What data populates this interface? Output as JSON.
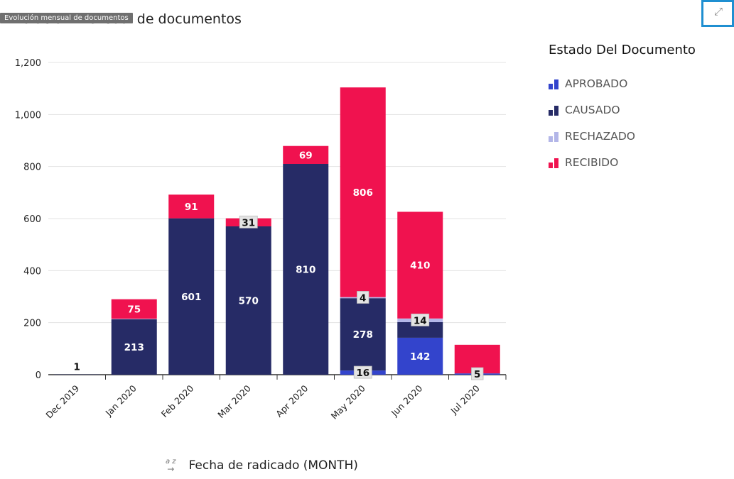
{
  "page": {
    "title": "Evolución mensual de documentos",
    "tooltip": "Evolución mensual de documentos",
    "expand_icon": "expand-icon",
    "sort_icon": "az-sort-icon",
    "sort_glyph": "a z",
    "sort_arrow": "→"
  },
  "chart_data": {
    "type": "bar",
    "stacked": true,
    "title": "Evolución mensual de documentos",
    "xlabel": "Fecha de radicado (MONTH)",
    "ylabel": "",
    "ylim": [
      0,
      1200
    ],
    "yticks": [
      0,
      200,
      400,
      600,
      800,
      1000,
      1200
    ],
    "ytick_labels": [
      "0",
      "200",
      "400",
      "600",
      "800",
      "1,000",
      "1,200"
    ],
    "grid": true,
    "categories": [
      "Dec 2019",
      "Jan 2020",
      "Feb 2020",
      "Mar 2020",
      "Apr 2020",
      "May 2020",
      "Jun 2020",
      "Jul 2020"
    ],
    "legend": {
      "title": "Estado Del Documento",
      "position": "right"
    },
    "series": [
      {
        "name": "APROBADO",
        "color": "#3344cc",
        "values": [
          0,
          0,
          0,
          0,
          0,
          16,
          142,
          5
        ]
      },
      {
        "name": "CAUSADO",
        "color": "#262b66",
        "values": [
          1,
          213,
          601,
          570,
          810,
          278,
          60,
          0
        ]
      },
      {
        "name": "RECHAZADO",
        "color": "#b3b6e8",
        "values": [
          0,
          2,
          0,
          0,
          0,
          4,
          14,
          0
        ]
      },
      {
        "name": "RECIBIDO",
        "color": "#f0124f",
        "values": [
          0,
          75,
          91,
          31,
          69,
          806,
          410,
          110
        ]
      }
    ],
    "data_labels": [
      {
        "category": "Dec 2019",
        "series": "CAUSADO",
        "text": "1",
        "style": "outside"
      },
      {
        "category": "Jan 2020",
        "series": "CAUSADO",
        "text": "213",
        "style": "light"
      },
      {
        "category": "Jan 2020",
        "series": "RECIBIDO",
        "text": "75",
        "style": "light"
      },
      {
        "category": "Feb 2020",
        "series": "CAUSADO",
        "text": "601",
        "style": "light"
      },
      {
        "category": "Feb 2020",
        "series": "RECIBIDO",
        "text": "91",
        "style": "light"
      },
      {
        "category": "Mar 2020",
        "series": "CAUSADO",
        "text": "570",
        "style": "light"
      },
      {
        "category": "Mar 2020",
        "series": "RECIBIDO",
        "text": "31",
        "style": "boxed"
      },
      {
        "category": "Apr 2020",
        "series": "CAUSADO",
        "text": "810",
        "style": "light"
      },
      {
        "category": "Apr 2020",
        "series": "RECIBIDO",
        "text": "69",
        "style": "light"
      },
      {
        "category": "May 2020",
        "series": "APROBADO",
        "text": "16",
        "style": "boxed"
      },
      {
        "category": "May 2020",
        "series": "CAUSADO",
        "text": "278",
        "style": "light"
      },
      {
        "category": "May 2020",
        "series": "RECHAZADO",
        "text": "4",
        "style": "boxed"
      },
      {
        "category": "May 2020",
        "series": "RECIBIDO",
        "text": "806",
        "style": "light"
      },
      {
        "category": "Jun 2020",
        "series": "APROBADO",
        "text": "142",
        "style": "light"
      },
      {
        "category": "Jun 2020",
        "series": "RECHAZADO",
        "text": "14",
        "style": "boxed"
      },
      {
        "category": "Jun 2020",
        "series": "RECIBIDO",
        "text": "410",
        "style": "light"
      },
      {
        "category": "Jul 2020",
        "series": "APROBADO",
        "text": "5",
        "style": "boxed"
      }
    ]
  }
}
